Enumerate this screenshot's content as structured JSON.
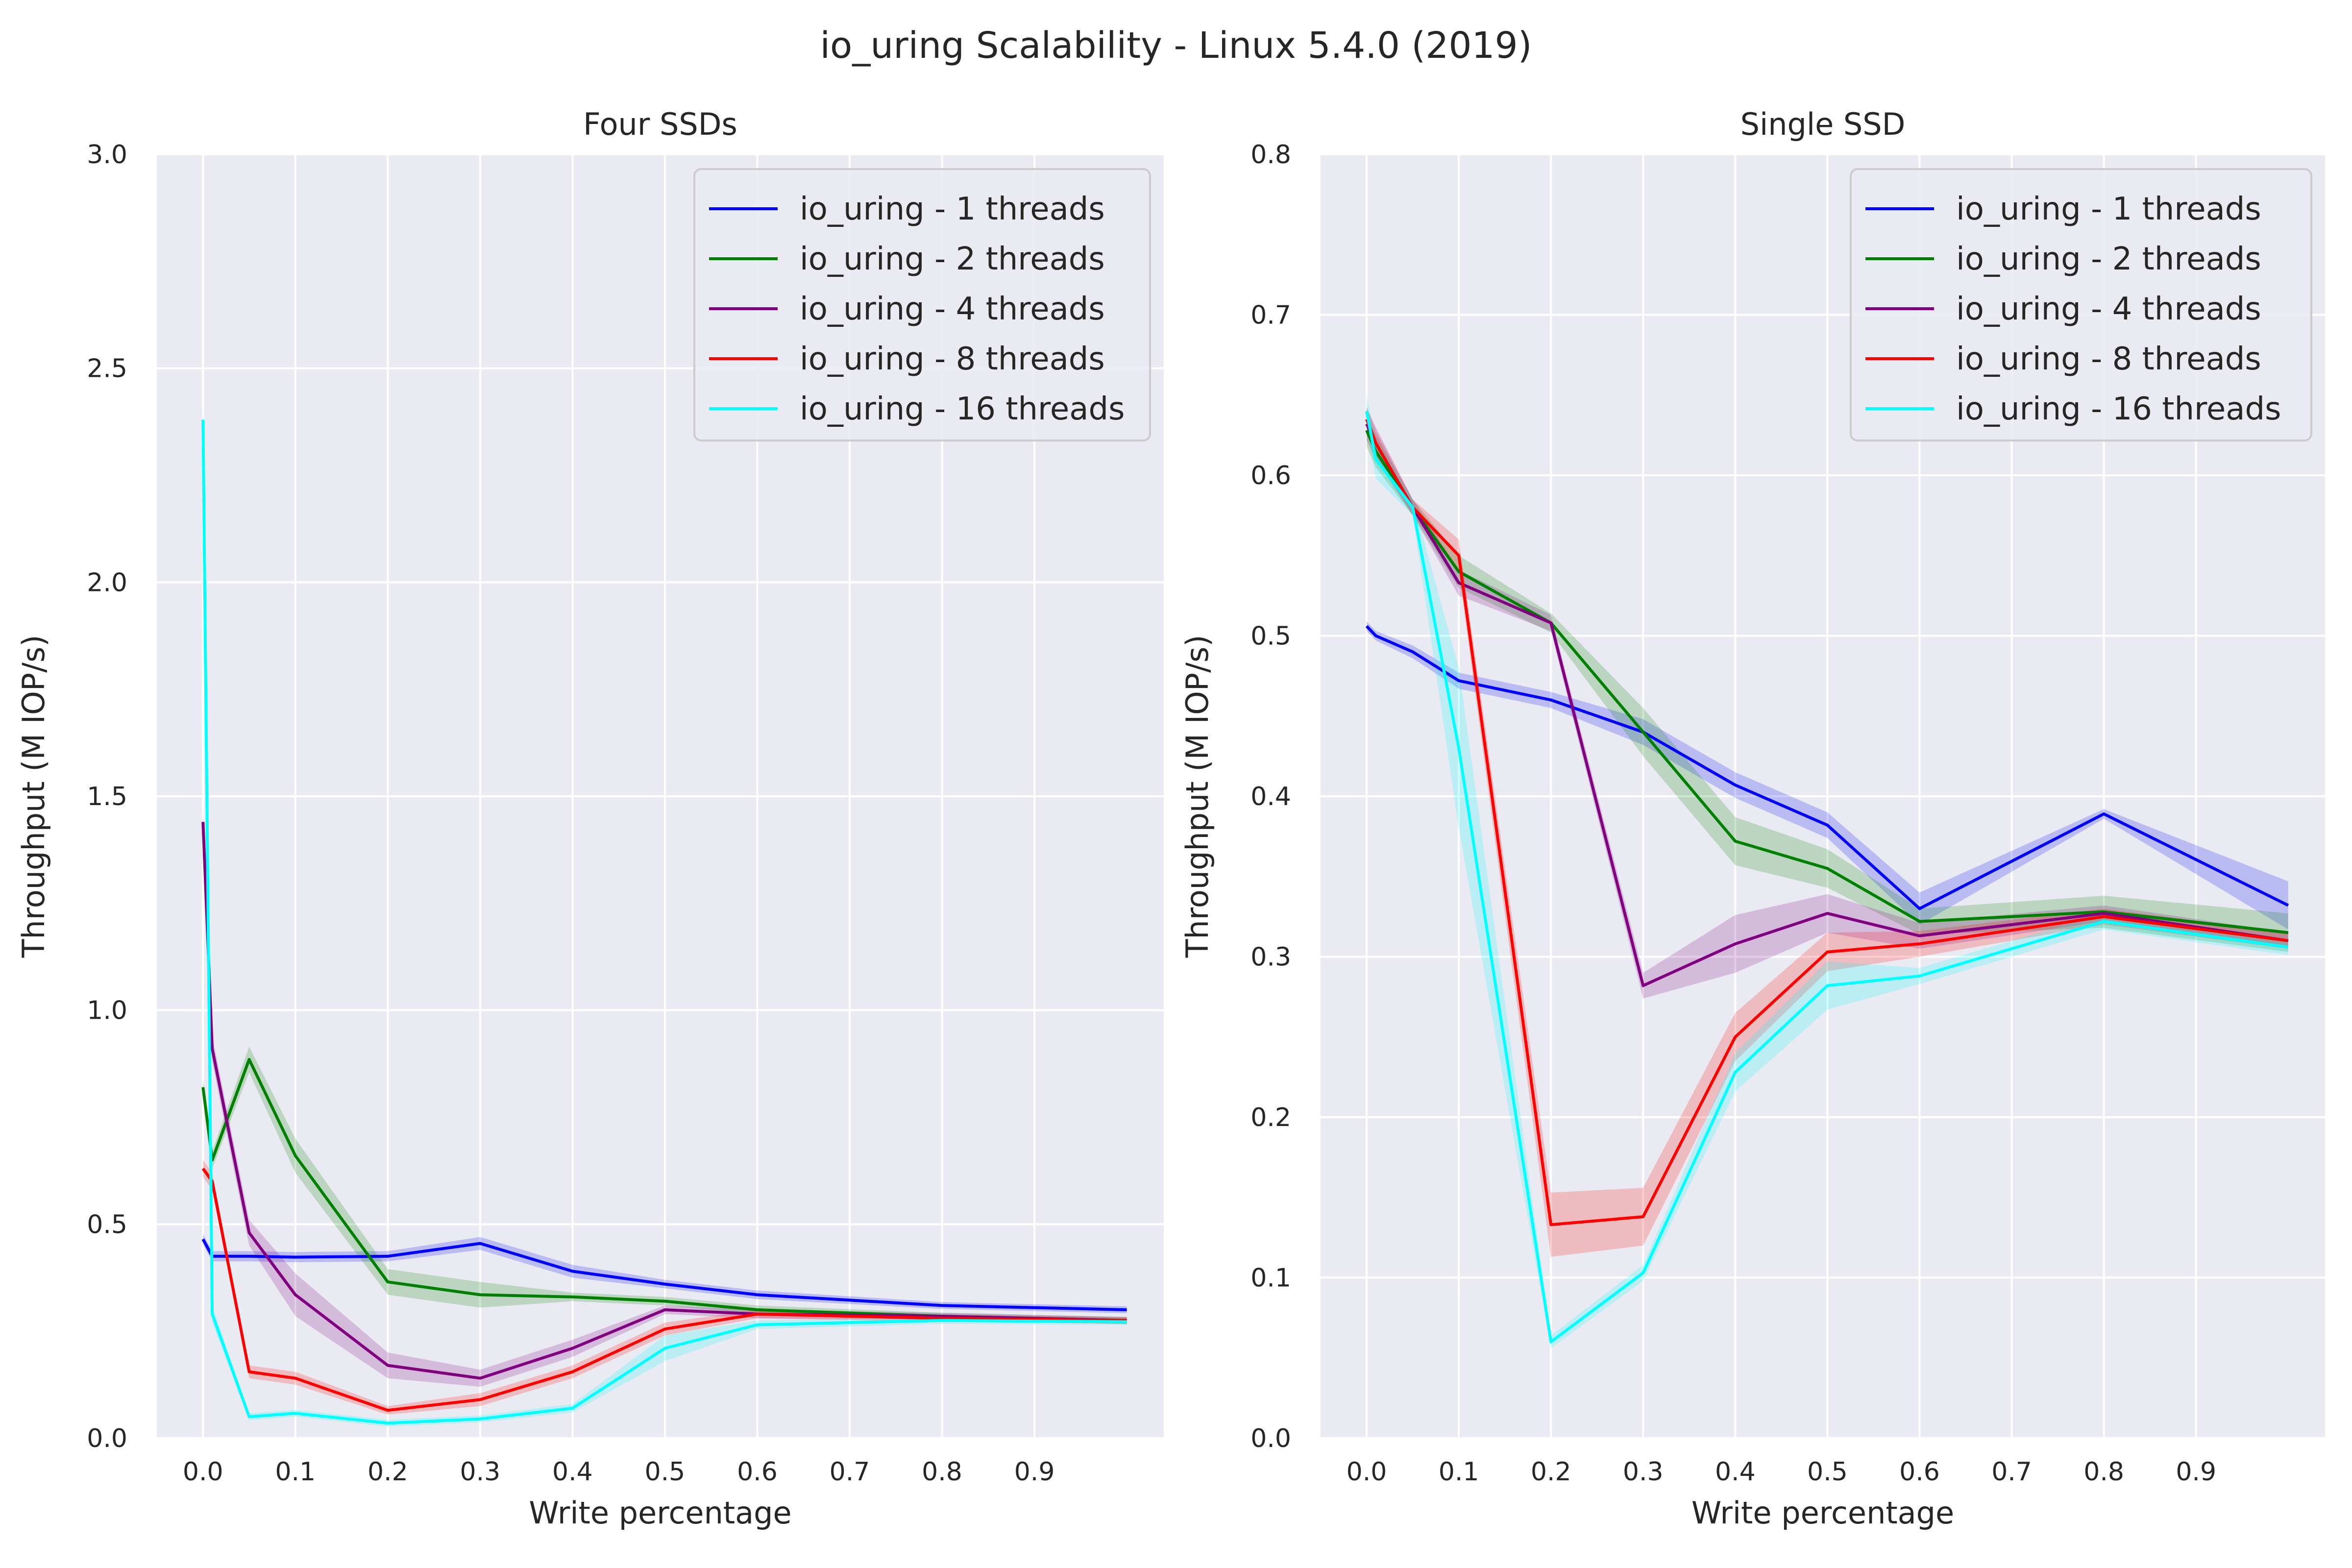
{
  "figure": {
    "title": "io_uring Scalability - Linux 5.4.0 (2019)"
  },
  "colors": {
    "plot_background": "#EAEAF2",
    "grid": "#FFFFFF",
    "text": "#262626"
  },
  "chart_data": [
    {
      "type": "line",
      "title": "Four SSDs",
      "xlabel": "Write percentage",
      "ylabel": "Throughput (M IOP/s)",
      "xlim": [
        -0.05,
        1.04
      ],
      "ylim": [
        0,
        3.0
      ],
      "xticks": [
        "0.0",
        "0.1",
        "0.2",
        "0.3",
        "0.4",
        "0.5",
        "0.6",
        "0.7",
        "0.8",
        "0.9"
      ],
      "yticks": [
        "0.0",
        "0.5",
        "1.0",
        "1.5",
        "2.0",
        "2.5",
        "3.0"
      ],
      "grid": true,
      "legend_position": "top-right",
      "x": [
        0,
        0.01,
        0.05,
        0.1,
        0.2,
        0.3,
        0.4,
        0.5,
        0.6,
        0.8,
        1.0
      ],
      "series": [
        {
          "name": "io_uring - 1 threads",
          "color": "#0000FF",
          "values": [
            0.465,
            0.425,
            0.425,
            0.423,
            0.425,
            0.455,
            0.39,
            0.36,
            0.335,
            0.31,
            0.3
          ],
          "band": [
            0.012,
            0.012,
            0.012,
            0.012,
            0.012,
            0.015,
            0.015,
            0.01,
            0.01,
            0.008,
            0.008
          ]
        },
        {
          "name": "io_uring - 2 threads",
          "color": "#008000",
          "values": [
            0.82,
            0.65,
            0.885,
            0.66,
            0.365,
            0.335,
            0.33,
            0.32,
            0.3,
            0.285,
            0.275
          ],
          "band": [
            0.02,
            0.02,
            0.03,
            0.04,
            0.03,
            0.03,
            0.01,
            0.01,
            0.01,
            0.008,
            0.008
          ]
        },
        {
          "name": "io_uring - 4 threads",
          "color": "#800080",
          "values": [
            1.44,
            0.91,
            0.48,
            0.335,
            0.17,
            0.14,
            0.21,
            0.3,
            0.29,
            0.285,
            0.275
          ],
          "band": [
            0.03,
            0.03,
            0.03,
            0.05,
            0.03,
            0.02,
            0.02,
            0.01,
            0.01,
            0.008,
            0.008
          ]
        },
        {
          "name": "io_uring - 8 threads",
          "color": "#FF0000",
          "values": [
            0.63,
            0.6,
            0.155,
            0.14,
            0.065,
            0.09,
            0.155,
            0.255,
            0.29,
            0.28,
            0.275
          ],
          "band": [
            0.02,
            0.02,
            0.015,
            0.015,
            0.01,
            0.015,
            0.015,
            0.015,
            0.01,
            0.008,
            0.008
          ]
        },
        {
          "name": "io_uring - 16 threads",
          "color": "#00FFFF",
          "values": [
            2.38,
            0.29,
            0.05,
            0.058,
            0.035,
            0.045,
            0.07,
            0.21,
            0.265,
            0.275,
            0.272
          ],
          "band": [
            0.035,
            0.02,
            0.008,
            0.008,
            0.008,
            0.008,
            0.01,
            0.03,
            0.01,
            0.008,
            0.008
          ]
        }
      ]
    },
    {
      "type": "line",
      "title": "Single SSD",
      "xlabel": "Write percentage",
      "ylabel": "Throughput (M IOP/s)",
      "xlim": [
        -0.05,
        1.04
      ],
      "ylim": [
        0,
        0.8
      ],
      "xticks": [
        "0.0",
        "0.1",
        "0.2",
        "0.3",
        "0.4",
        "0.5",
        "0.6",
        "0.7",
        "0.8",
        "0.9"
      ],
      "yticks": [
        "0.0",
        "0.1",
        "0.2",
        "0.3",
        "0.4",
        "0.5",
        "0.6",
        "0.7",
        "0.8"
      ],
      "grid": true,
      "legend_position": "top-right",
      "x": [
        0,
        0.01,
        0.05,
        0.1,
        0.2,
        0.3,
        0.4,
        0.5,
        0.6,
        0.8,
        1.0
      ],
      "series": [
        {
          "name": "io_uring - 1 threads",
          "color": "#0000FF",
          "values": [
            0.506,
            0.5,
            0.49,
            0.472,
            0.46,
            0.44,
            0.407,
            0.382,
            0.33,
            0.389,
            0.332
          ],
          "band": [
            0.003,
            0.003,
            0.004,
            0.005,
            0.005,
            0.008,
            0.008,
            0.008,
            0.01,
            0.003,
            0.015
          ]
        },
        {
          "name": "io_uring - 2 threads",
          "color": "#008000",
          "values": [
            0.628,
            0.615,
            0.58,
            0.54,
            0.508,
            0.44,
            0.372,
            0.355,
            0.322,
            0.328,
            0.315
          ],
          "band": [
            0.01,
            0.01,
            0.005,
            0.01,
            0.006,
            0.015,
            0.015,
            0.012,
            0.008,
            0.01,
            0.012
          ]
        },
        {
          "name": "io_uring - 4 threads",
          "color": "#800080",
          "values": [
            0.632,
            0.62,
            0.58,
            0.533,
            0.508,
            0.282,
            0.308,
            0.327,
            0.313,
            0.327,
            0.31
          ],
          "band": [
            0.01,
            0.01,
            0.005,
            0.008,
            0.005,
            0.008,
            0.018,
            0.012,
            0.008,
            0.005,
            0.005
          ]
        },
        {
          "name": "io_uring - 8 threads",
          "color": "#FF0000",
          "values": [
            0.635,
            0.62,
            0.58,
            0.55,
            0.133,
            0.138,
            0.25,
            0.303,
            0.308,
            0.325,
            0.31
          ],
          "band": [
            0.008,
            0.008,
            0.005,
            0.01,
            0.02,
            0.018,
            0.015,
            0.012,
            0.008,
            0.005,
            0.005
          ]
        },
        {
          "name": "io_uring - 16 threads",
          "color": "#00FFFF",
          "values": [
            0.64,
            0.61,
            0.58,
            0.43,
            0.06,
            0.103,
            0.228,
            0.282,
            0.288,
            0.322,
            0.306
          ],
          "band": [
            0.01,
            0.012,
            0.005,
            0.05,
            0.004,
            0.005,
            0.012,
            0.015,
            0.005,
            0.005,
            0.005
          ]
        }
      ]
    }
  ]
}
